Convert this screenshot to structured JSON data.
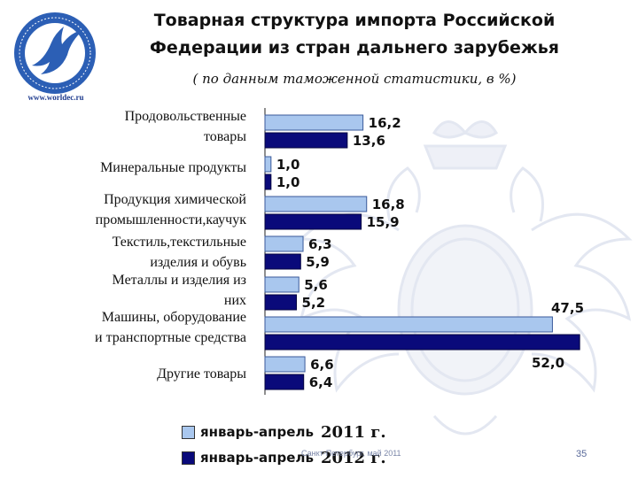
{
  "header": {
    "site": "www.worldec.ru",
    "title_line1": "Товарная  структура импорта Российской",
    "title_line2": "Федерации  из стран дальнего зарубежья",
    "subtitle": "( по данным таможенной статистики, в %)"
  },
  "footer": {
    "text": "Санкт-Петербург, май 2011",
    "page": "35"
  },
  "colors": {
    "series_2011": "#a9c7ee",
    "series_2012": "#0a0a7a",
    "crest": "#e6e9f3"
  },
  "chart_data": {
    "type": "bar",
    "orientation": "horizontal",
    "categories": [
      [
        "Продовольственные",
        "товары"
      ],
      [
        "Минеральные продукты"
      ],
      [
        "Продукция химической",
        "промышленности,каучук"
      ],
      [
        "Текстиль,текстильные",
        "изделия и обувь"
      ],
      [
        "Металлы и изделия из",
        "них"
      ],
      [
        "Машины, оборудование",
        "и транспортные средства"
      ],
      [
        "Другие товары"
      ]
    ],
    "series": [
      {
        "name": "январь-апрель",
        "year": "2011 г.",
        "values": [
          16.2,
          1.0,
          16.8,
          6.3,
          5.6,
          47.5,
          6.6
        ],
        "labels": [
          "16,2",
          "1,0",
          "16,8",
          "6,3",
          "5,6",
          "47,5",
          "6,6"
        ]
      },
      {
        "name": "январь-апрель",
        "year": "2012 г.",
        "values": [
          13.6,
          1.0,
          15.9,
          5.9,
          5.2,
          52.0,
          6.4
        ],
        "labels": [
          "13,6",
          "1,0",
          "15,9",
          "5,9",
          "5,2",
          "52,0",
          "6,4"
        ]
      }
    ],
    "xlim": [
      0,
      52
    ],
    "grid": false,
    "legend_position": "bottom"
  }
}
